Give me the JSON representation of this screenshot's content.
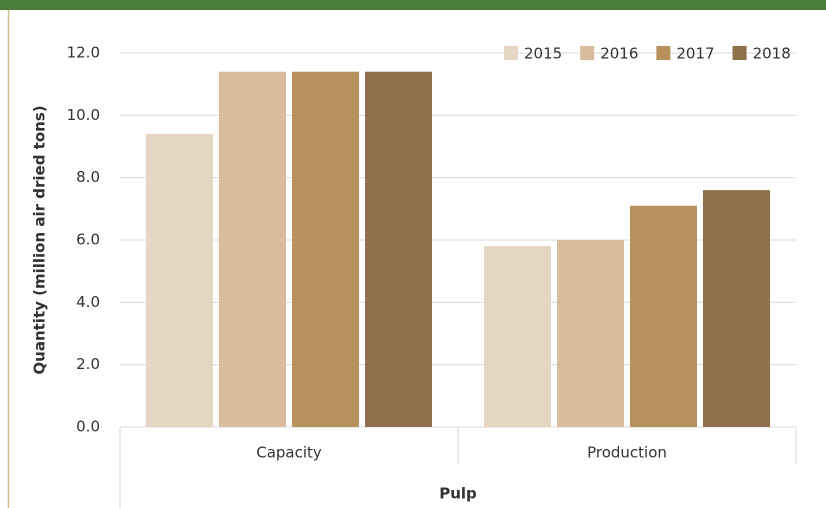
{
  "chart_data": {
    "type": "bar",
    "x_label": "Pulp",
    "y_label": "Quantity (million air dried tons)",
    "categories": [
      "Capacity",
      "Production"
    ],
    "series": [
      {
        "name": "2015",
        "color": "#e5d5c3",
        "values": [
          9.4,
          5.8
        ]
      },
      {
        "name": "2016",
        "color": "#d7bc9e",
        "values": [
          11.4,
          6.0
        ]
      },
      {
        "name": "2017",
        "color": "#b8915e",
        "values": [
          11.4,
          7.1
        ]
      },
      {
        "name": "2018",
        "color": "#8e714a",
        "values": [
          11.4,
          7.6
        ]
      }
    ],
    "ylim": [
      0,
      12
    ],
    "yticks": [
      {
        "value": 0,
        "label": "0.0"
      },
      {
        "value": 2,
        "label": "2.0"
      },
      {
        "value": 4,
        "label": "4.0"
      },
      {
        "value": 6,
        "label": "6.0"
      },
      {
        "value": 8,
        "label": "8.0"
      },
      {
        "value": 10,
        "label": "10.0"
      },
      {
        "value": 12,
        "label": "12.0"
      }
    ],
    "grid": true,
    "legend": "top-right"
  }
}
